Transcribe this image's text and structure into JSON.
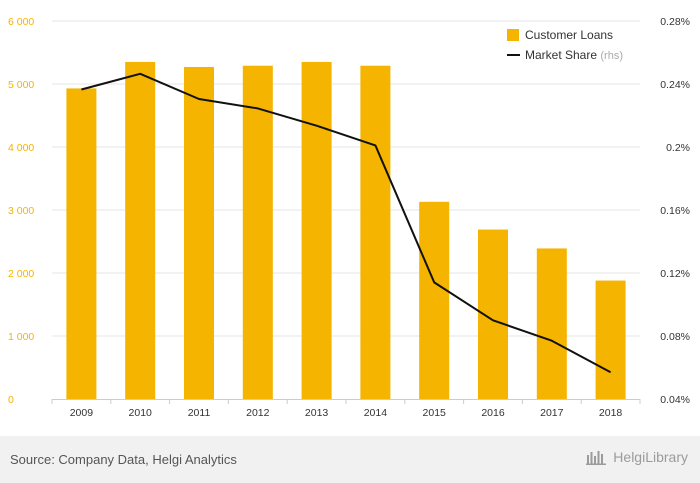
{
  "chart_data": {
    "type": "bar",
    "categories": [
      "2009",
      "2010",
      "2011",
      "2012",
      "2013",
      "2014",
      "2015",
      "2016",
      "2017",
      "2018"
    ],
    "series": [
      {
        "name": "Customer Loans",
        "type": "bar",
        "axis": "left",
        "color": "#f5b400",
        "values": [
          4930,
          5350,
          5270,
          5290,
          5350,
          5290,
          3130,
          2690,
          2390,
          1880
        ]
      },
      {
        "name": "Market Share",
        "name_suffix": "(rhs)",
        "type": "line",
        "axis": "right",
        "color": "#111111",
        "values": [
          0.2365,
          0.2465,
          0.2305,
          0.2245,
          0.2135,
          0.201,
          0.114,
          0.09,
          0.077,
          0.057
        ]
      }
    ],
    "y_left": {
      "range": [
        0,
        6000
      ],
      "ticks": [
        0,
        1000,
        2000,
        3000,
        4000,
        5000,
        6000
      ],
      "tick_labels": [
        "0",
        "1 000",
        "2 000",
        "3 000",
        "4 000",
        "5 000",
        "6 000"
      ],
      "label_color": "#f5b400"
    },
    "y_right": {
      "range": [
        0.04,
        0.28
      ],
      "ticks": [
        0.04,
        0.08,
        0.12,
        0.16,
        0.2,
        0.24,
        0.28
      ],
      "tick_labels": [
        "0.04%",
        "0.08%",
        "0.12%",
        "0.16%",
        "0.2%",
        "0.24%",
        "0.28%"
      ]
    },
    "grid": true,
    "legend_position": "top-right"
  },
  "footer": {
    "source": "Source: Company Data, Helgi Analytics",
    "brand": "HelgiLibrary"
  }
}
